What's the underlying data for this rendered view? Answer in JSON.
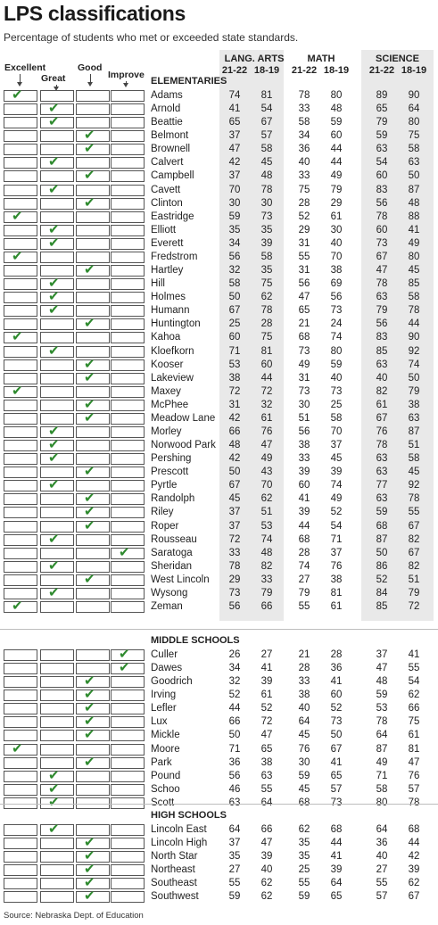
{
  "title": "LPS classifications",
  "subtitle": "Percentage of students who met or exceeded state standards.",
  "categories": [
    "Excellent",
    "Great",
    "Good",
    "Improve"
  ],
  "column_groups": [
    "LANG. ARTS",
    "MATH",
    "SCIENCE"
  ],
  "years": [
    "21-22",
    "18-19",
    "21-22",
    "18-19",
    "21-22",
    "18-19"
  ],
  "check_color": "#2e8a2e",
  "band_color": "#e9e9e9",
  "source": "Source: Nebraska Dept. of Education",
  "sections": [
    {
      "title": "ELEMENTARIES",
      "schools": [
        {
          "name": "Adams",
          "rating": "Excellent",
          "values": [
            74,
            81,
            78,
            80,
            89,
            90
          ]
        },
        {
          "name": "Arnold",
          "rating": "Great",
          "values": [
            41,
            54,
            33,
            48,
            65,
            64
          ]
        },
        {
          "name": "Beattie",
          "rating": "Great",
          "values": [
            65,
            67,
            58,
            59,
            79,
            80
          ]
        },
        {
          "name": "Belmont",
          "rating": "Good",
          "values": [
            37,
            57,
            34,
            60,
            59,
            75
          ]
        },
        {
          "name": "Brownell",
          "rating": "Good",
          "values": [
            47,
            58,
            36,
            44,
            63,
            58
          ]
        },
        {
          "name": "Calvert",
          "rating": "Great",
          "values": [
            42,
            45,
            40,
            44,
            54,
            63
          ]
        },
        {
          "name": "Campbell",
          "rating": "Good",
          "values": [
            37,
            48,
            33,
            49,
            60,
            50
          ]
        },
        {
          "name": "Cavett",
          "rating": "Great",
          "values": [
            70,
            78,
            75,
            79,
            83,
            87
          ]
        },
        {
          "name": "Clinton",
          "rating": "Good",
          "values": [
            30,
            30,
            28,
            29,
            56,
            48
          ]
        },
        {
          "name": "Eastridge",
          "rating": "Excellent",
          "values": [
            59,
            73,
            52,
            61,
            78,
            88
          ]
        },
        {
          "name": "Elliott",
          "rating": "Great",
          "values": [
            35,
            35,
            29,
            30,
            60,
            41
          ]
        },
        {
          "name": "Everett",
          "rating": "Great",
          "values": [
            34,
            39,
            31,
            40,
            73,
            49
          ]
        },
        {
          "name": "Fredstrom",
          "rating": "Excellent",
          "values": [
            56,
            58,
            55,
            70,
            67,
            80
          ]
        },
        {
          "name": "Hartley",
          "rating": "Good",
          "values": [
            32,
            35,
            31,
            38,
            47,
            45
          ]
        },
        {
          "name": "Hill",
          "rating": "Great",
          "values": [
            58,
            75,
            56,
            69,
            78,
            85
          ]
        },
        {
          "name": "Holmes",
          "rating": "Great",
          "values": [
            50,
            62,
            47,
            56,
            63,
            58
          ]
        },
        {
          "name": "Humann",
          "rating": "Great",
          "values": [
            67,
            78,
            65,
            73,
            79,
            78
          ]
        },
        {
          "name": "Huntington",
          "rating": "Good",
          "values": [
            25,
            28,
            21,
            24,
            56,
            44
          ]
        },
        {
          "name": "Kahoa",
          "rating": "Excellent",
          "values": [
            60,
            75,
            68,
            74,
            83,
            90
          ]
        },
        {
          "name": "Kloefkorn",
          "rating": "Great",
          "values": [
            71,
            81,
            73,
            80,
            85,
            92
          ]
        },
        {
          "name": "Kooser",
          "rating": "Good",
          "values": [
            53,
            60,
            49,
            59,
            63,
            74
          ]
        },
        {
          "name": "Lakeview",
          "rating": "Good",
          "values": [
            38,
            44,
            31,
            40,
            40,
            50
          ]
        },
        {
          "name": "Maxey",
          "rating": "Excellent",
          "values": [
            72,
            72,
            73,
            73,
            82,
            79
          ]
        },
        {
          "name": "McPhee",
          "rating": "Good",
          "values": [
            31,
            32,
            30,
            25,
            61,
            38
          ]
        },
        {
          "name": "Meadow Lane",
          "rating": "Good",
          "values": [
            42,
            61,
            51,
            58,
            67,
            63
          ]
        },
        {
          "name": "Morley",
          "rating": "Great",
          "values": [
            66,
            76,
            56,
            70,
            76,
            87
          ]
        },
        {
          "name": "Norwood Park",
          "rating": "Great",
          "values": [
            48,
            47,
            38,
            37,
            78,
            51
          ]
        },
        {
          "name": "Pershing",
          "rating": "Great",
          "values": [
            42,
            49,
            33,
            45,
            63,
            58
          ]
        },
        {
          "name": "Prescott",
          "rating": "Good",
          "values": [
            50,
            43,
            39,
            39,
            63,
            45
          ]
        },
        {
          "name": "Pyrtle",
          "rating": "Great",
          "values": [
            67,
            70,
            60,
            74,
            77,
            92
          ]
        },
        {
          "name": "Randolph",
          "rating": "Good",
          "values": [
            45,
            62,
            41,
            49,
            63,
            78
          ]
        },
        {
          "name": "Riley",
          "rating": "Good",
          "values": [
            37,
            51,
            39,
            52,
            59,
            55
          ]
        },
        {
          "name": "Roper",
          "rating": "Good",
          "values": [
            37,
            53,
            44,
            54,
            68,
            67
          ]
        },
        {
          "name": "Rousseau",
          "rating": "Great",
          "values": [
            72,
            74,
            68,
            71,
            87,
            82
          ]
        },
        {
          "name": "Saratoga",
          "rating": "Improve",
          "values": [
            33,
            48,
            28,
            37,
            50,
            67
          ]
        },
        {
          "name": "Sheridan",
          "rating": "Great",
          "values": [
            78,
            82,
            74,
            76,
            86,
            82
          ]
        },
        {
          "name": "West Lincoln",
          "rating": "Good",
          "values": [
            29,
            33,
            27,
            38,
            52,
            51
          ]
        },
        {
          "name": "Wysong",
          "rating": "Great",
          "values": [
            73,
            79,
            79,
            81,
            84,
            79
          ]
        },
        {
          "name": "Zeman",
          "rating": "Excellent",
          "values": [
            56,
            66,
            55,
            61,
            85,
            72
          ]
        }
      ]
    },
    {
      "title": "MIDDLE SCHOOLS",
      "schools": [
        {
          "name": "Culler",
          "rating": "Improve",
          "values": [
            26,
            27,
            21,
            28,
            37,
            41
          ]
        },
        {
          "name": "Dawes",
          "rating": "Improve",
          "values": [
            34,
            41,
            28,
            36,
            47,
            55
          ]
        },
        {
          "name": "Goodrich",
          "rating": "Good",
          "values": [
            32,
            39,
            33,
            41,
            48,
            54
          ]
        },
        {
          "name": "Irving",
          "rating": "Good",
          "values": [
            52,
            61,
            38,
            60,
            59,
            62
          ]
        },
        {
          "name": "Lefler",
          "rating": "Good",
          "values": [
            44,
            52,
            40,
            52,
            53,
            66
          ]
        },
        {
          "name": "Lux",
          "rating": "Good",
          "values": [
            66,
            72,
            64,
            73,
            78,
            75
          ]
        },
        {
          "name": "Mickle",
          "rating": "Good",
          "values": [
            50,
            47,
            45,
            50,
            64,
            61
          ]
        },
        {
          "name": "Moore",
          "rating": "Excellent",
          "values": [
            71,
            65,
            76,
            67,
            87,
            81
          ]
        },
        {
          "name": "Park",
          "rating": "Good",
          "values": [
            36,
            38,
            30,
            41,
            49,
            47
          ]
        },
        {
          "name": "Pound",
          "rating": "Great",
          "values": [
            56,
            63,
            59,
            65,
            71,
            76
          ]
        },
        {
          "name": "Schoo",
          "rating": "Great",
          "values": [
            46,
            55,
            45,
            57,
            58,
            57
          ]
        },
        {
          "name": "Scott",
          "rating": "Great",
          "values": [
            63,
            64,
            68,
            73,
            80,
            78
          ]
        }
      ]
    },
    {
      "title": "HIGH SCHOOLS",
      "schools": [
        {
          "name": "Lincoln East",
          "rating": "Great",
          "values": [
            64,
            66,
            62,
            68,
            64,
            68
          ]
        },
        {
          "name": "Lincoln High",
          "rating": "Good",
          "values": [
            37,
            47,
            35,
            44,
            36,
            44
          ]
        },
        {
          "name": "North Star",
          "rating": "Good",
          "values": [
            35,
            39,
            35,
            41,
            40,
            42
          ]
        },
        {
          "name": "Northeast",
          "rating": "Good",
          "values": [
            27,
            40,
            25,
            39,
            27,
            39
          ]
        },
        {
          "name": "Southeast",
          "rating": "Good",
          "values": [
            55,
            62,
            55,
            64,
            55,
            62
          ]
        },
        {
          "name": "Southwest",
          "rating": "Good",
          "values": [
            59,
            62,
            59,
            65,
            57,
            67
          ]
        }
      ]
    }
  ]
}
